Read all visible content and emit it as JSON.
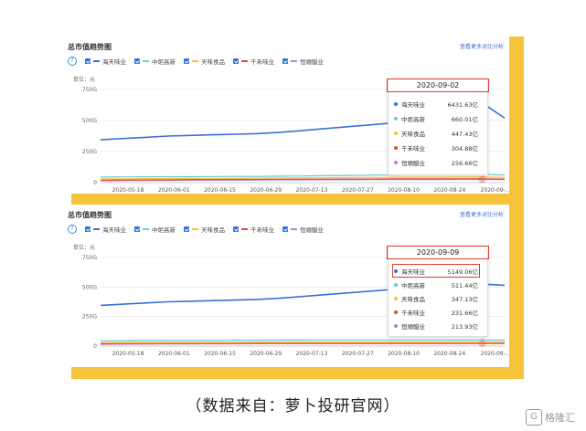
{
  "colors": {
    "accent": "#2f6fd1",
    "highlight": "#e03a2f",
    "frame": "#f6c43a",
    "series": [
      "#3b6fd6",
      "#6ec9d6",
      "#f2c23a",
      "#e84a3a",
      "#a58ad4"
    ]
  },
  "caption": "（数据来自：萝卜投研官网）",
  "watermark": "格隆汇",
  "watermark_icon": "G",
  "panels": [
    {
      "title": "总市值趋势图",
      "link": "查看更多对比分析",
      "help": "?",
      "unit": "单位：元"
    },
    {
      "title": "总市值趋势图",
      "link": "查看更多对比分析",
      "help": "?",
      "unit": "单位：元"
    }
  ],
  "chart_data": [
    {
      "type": "line",
      "ylabel": "单位：元",
      "y_tick_labels": [
        "0",
        "250G",
        "500G",
        "750G"
      ],
      "ylim": [
        0,
        750
      ],
      "x_tick_labels": [
        "2020-05-18",
        "2020-06-01",
        "2020-06-15",
        "2020-06-29",
        "2020-07-13",
        "2020-07-27",
        "2020-08-10",
        "2020-08-24",
        "2020-09-..."
      ],
      "x": [
        "2020-05-11",
        "2020-05-18",
        "2020-05-25",
        "2020-06-01",
        "2020-06-08",
        "2020-06-15",
        "2020-06-22",
        "2020-06-29",
        "2020-07-06",
        "2020-07-13",
        "2020-07-20",
        "2020-07-27",
        "2020-08-03",
        "2020-08-10",
        "2020-08-17",
        "2020-08-24",
        "2020-08-31",
        "2020-09-02",
        "2020-09-07"
      ],
      "series": [
        {
          "name": "海天味业",
          "values": [
            345,
            355,
            365,
            375,
            380,
            385,
            390,
            395,
            405,
            420,
            435,
            450,
            465,
            480,
            500,
            540,
            600,
            643,
            520
          ]
        },
        {
          "name": "中炬高新",
          "values": [
            45,
            46,
            47,
            48,
            48,
            49,
            50,
            50,
            52,
            54,
            56,
            58,
            60,
            62,
            64,
            65,
            66,
            66,
            62
          ]
        },
        {
          "name": "天味食品",
          "values": [
            30,
            31,
            32,
            33,
            34,
            35,
            36,
            37,
            38,
            39,
            40,
            41,
            42,
            43,
            44,
            44,
            45,
            45,
            43
          ]
        },
        {
          "name": "千禾味业",
          "values": [
            20,
            21,
            22,
            23,
            24,
            25,
            26,
            26,
            27,
            28,
            28,
            29,
            29,
            30,
            30,
            30,
            31,
            30,
            29
          ]
        },
        {
          "name": "恒顺醋业",
          "values": [
            15,
            16,
            17,
            18,
            19,
            20,
            20,
            21,
            22,
            22,
            23,
            23,
            24,
            24,
            25,
            25,
            26,
            26,
            24
          ]
        }
      ],
      "tooltip": {
        "date": "2020-09-02",
        "rows": [
          {
            "name": "海天味业",
            "value": "6431.63亿"
          },
          {
            "name": "中炬高新",
            "value": "660.01亿"
          },
          {
            "name": "天味食品",
            "value": "447.43亿"
          },
          {
            "name": "千禾味业",
            "value": "304.88亿"
          },
          {
            "name": "恒顺醋业",
            "value": "256.66亿"
          }
        ]
      }
    },
    {
      "type": "line",
      "ylabel": "单位：元",
      "y_tick_labels": [
        "0",
        "250G",
        "500G",
        "750G"
      ],
      "ylim": [
        0,
        750
      ],
      "x_tick_labels": [
        "2020-05-18",
        "2020-06-01",
        "2020-06-15",
        "2020-06-29",
        "2020-07-13",
        "2020-07-27",
        "2020-08-10",
        "2020-08-24",
        "2020-09-..."
      ],
      "x": [
        "2020-05-11",
        "2020-05-18",
        "2020-05-25",
        "2020-06-01",
        "2020-06-08",
        "2020-06-15",
        "2020-06-22",
        "2020-06-29",
        "2020-07-06",
        "2020-07-13",
        "2020-07-20",
        "2020-07-27",
        "2020-08-03",
        "2020-08-10",
        "2020-08-17",
        "2020-08-24",
        "2020-08-31",
        "2020-09-07",
        "2020-09-09"
      ],
      "series": [
        {
          "name": "海天味业",
          "values": [
            345,
            355,
            365,
            375,
            380,
            385,
            390,
            395,
            405,
            420,
            435,
            450,
            465,
            480,
            500,
            515,
            520,
            525,
            515
          ]
        },
        {
          "name": "中炬高新",
          "values": [
            45,
            46,
            47,
            48,
            48,
            49,
            50,
            50,
            51,
            51,
            52,
            52,
            52,
            52,
            52,
            52,
            51,
            51,
            51
          ]
        },
        {
          "name": "天味食品",
          "values": [
            30,
            31,
            32,
            33,
            33,
            34,
            34,
            34,
            35,
            35,
            35,
            35,
            35,
            35,
            35,
            35,
            35,
            35,
            35
          ]
        },
        {
          "name": "千禾味业",
          "values": [
            20,
            21,
            21,
            22,
            22,
            22,
            22,
            23,
            23,
            23,
            23,
            23,
            23,
            23,
            23,
            23,
            23,
            23,
            23
          ]
        },
        {
          "name": "恒顺醋业",
          "values": [
            15,
            16,
            17,
            18,
            18,
            19,
            19,
            20,
            20,
            20,
            21,
            21,
            21,
            21,
            21,
            21,
            21,
            21,
            21
          ]
        }
      ],
      "tooltip": {
        "date": "2020-09-09",
        "rows": [
          {
            "name": "海天味业",
            "value": "5149.06亿"
          },
          {
            "name": "中炬高新",
            "value": "511.44亿"
          },
          {
            "name": "天味食品",
            "value": "347.13亿"
          },
          {
            "name": "千禾味业",
            "value": "231.66亿"
          },
          {
            "name": "恒顺醋业",
            "value": "213.93亿"
          }
        ]
      }
    }
  ]
}
